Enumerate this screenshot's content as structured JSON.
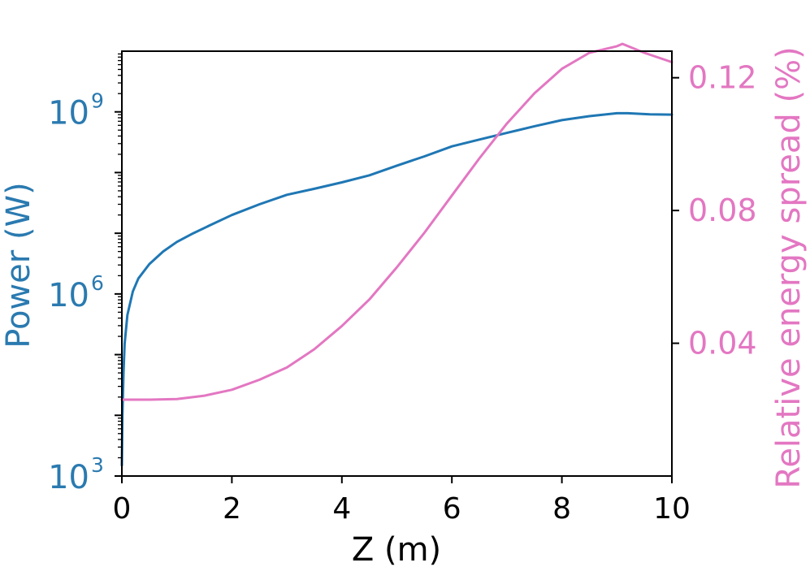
{
  "chart_data": {
    "type": "line",
    "title": "",
    "xlabel": "Z (m)",
    "ylabel_left": "Power (W)",
    "ylabel_right": "Relative energy spread (%)",
    "xlim": [
      0,
      10
    ],
    "x_ticks": [
      "0",
      "2",
      "4",
      "6",
      "8",
      "10"
    ],
    "y_left": {
      "scale": "log",
      "lim": [
        1000,
        10000000000
      ],
      "ticks": [
        {
          "value": 1000,
          "base": "10",
          "exp": "3"
        },
        {
          "value": 1000000,
          "base": "10",
          "exp": "6"
        },
        {
          "value": 1000000000,
          "base": "10",
          "exp": "9"
        }
      ],
      "color": "#2a7ab0"
    },
    "y_right": {
      "scale": "linear",
      "lim": [
        0.0,
        0.128
      ],
      "ticks": [
        "0.04",
        "0.08",
        "0.12"
      ],
      "color": "#e377c2"
    },
    "grid": false,
    "legend": "none",
    "series": [
      {
        "axis": "left",
        "color": "#1f77b4",
        "x": [
          0,
          0.01,
          0.03,
          0.05,
          0.1,
          0.2,
          0.3,
          0.5,
          0.75,
          1.0,
          1.3,
          1.6,
          2.0,
          2.5,
          3.0,
          3.5,
          4.0,
          4.5,
          5.0,
          5.5,
          6.0,
          6.5,
          7.0,
          7.5,
          8.0,
          8.5,
          9.0,
          9.2,
          9.6,
          10.0
        ],
        "y": [
          1500,
          10000,
          50000,
          150000,
          450000,
          1100000,
          1800000,
          3100000,
          5000000,
          7200000,
          10000000,
          13500000,
          20000000,
          30000000,
          43000000,
          54000000,
          69000000,
          90000000,
          130000000,
          185000000,
          270000000,
          350000000,
          450000000,
          580000000,
          730000000,
          850000000,
          950000000,
          950000000,
          910000000,
          900000000
        ]
      },
      {
        "axis": "right",
        "color": "#e377c2",
        "x": [
          0,
          0.5,
          1.0,
          1.5,
          2.0,
          2.5,
          3.0,
          3.5,
          4.0,
          4.5,
          5.0,
          5.5,
          6.0,
          6.5,
          7.0,
          7.5,
          8.0,
          8.5,
          9.0,
          9.1,
          9.5,
          10.0
        ],
        "y": [
          0.023,
          0.023,
          0.0232,
          0.0242,
          0.026,
          0.029,
          0.0327,
          0.0382,
          0.0452,
          0.0532,
          0.0629,
          0.0733,
          0.0845,
          0.0957,
          0.1062,
          0.1153,
          0.1227,
          0.1275,
          0.1295,
          0.1302,
          0.1275,
          0.1247
        ]
      }
    ]
  }
}
